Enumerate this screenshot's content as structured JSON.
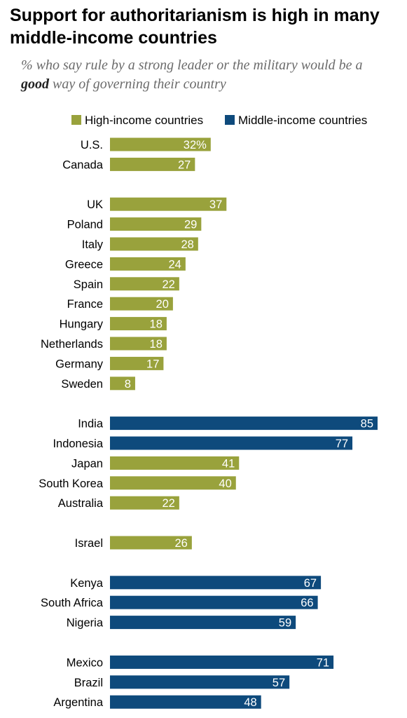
{
  "title": "Support for authoritarianism is high in many middle-income countries",
  "subtitle_prefix": "% who say rule by a strong leader or the military would be a ",
  "subtitle_emphasis": "good",
  "subtitle_suffix": " way of governing their country",
  "legend": [
    {
      "label": "High-income countries",
      "color": "#99a23c"
    },
    {
      "label": "Middle-income countries",
      "color": "#0e4a7c"
    }
  ],
  "chart_data": {
    "type": "bar",
    "orientation": "horizontal",
    "title": "Support for authoritarianism is high in many middle-income countries",
    "subtitle": "% who say rule by a strong leader or the military would be a good way of governing their country",
    "value_suffix_first": "%",
    "xlim": [
      0,
      85
    ],
    "groups": [
      {
        "rows": [
          {
            "country": "U.S.",
            "value": 32,
            "income": "High-income countries"
          },
          {
            "country": "Canada",
            "value": 27,
            "income": "High-income countries"
          }
        ]
      },
      {
        "rows": [
          {
            "country": "UK",
            "value": 37,
            "income": "High-income countries"
          },
          {
            "country": "Poland",
            "value": 29,
            "income": "High-income countries"
          },
          {
            "country": "Italy",
            "value": 28,
            "income": "High-income countries"
          },
          {
            "country": "Greece",
            "value": 24,
            "income": "High-income countries"
          },
          {
            "country": "Spain",
            "value": 22,
            "income": "High-income countries"
          },
          {
            "country": "France",
            "value": 20,
            "income": "High-income countries"
          },
          {
            "country": "Hungary",
            "value": 18,
            "income": "High-income countries"
          },
          {
            "country": "Netherlands",
            "value": 18,
            "income": "High-income countries"
          },
          {
            "country": "Germany",
            "value": 17,
            "income": "High-income countries"
          },
          {
            "country": "Sweden",
            "value": 8,
            "income": "High-income countries"
          }
        ]
      },
      {
        "rows": [
          {
            "country": "India",
            "value": 85,
            "income": "Middle-income countries"
          },
          {
            "country": "Indonesia",
            "value": 77,
            "income": "Middle-income countries"
          },
          {
            "country": "Japan",
            "value": 41,
            "income": "High-income countries"
          },
          {
            "country": "South Korea",
            "value": 40,
            "income": "High-income countries"
          },
          {
            "country": "Australia",
            "value": 22,
            "income": "High-income countries"
          }
        ]
      },
      {
        "rows": [
          {
            "country": "Israel",
            "value": 26,
            "income": "High-income countries"
          }
        ]
      },
      {
        "rows": [
          {
            "country": "Kenya",
            "value": 67,
            "income": "Middle-income countries"
          },
          {
            "country": "South Africa",
            "value": 66,
            "income": "Middle-income countries"
          },
          {
            "country": "Nigeria",
            "value": 59,
            "income": "Middle-income countries"
          }
        ]
      },
      {
        "rows": [
          {
            "country": "Mexico",
            "value": 71,
            "income": "Middle-income countries"
          },
          {
            "country": "Brazil",
            "value": 57,
            "income": "Middle-income countries"
          },
          {
            "country": "Argentina",
            "value": 48,
            "income": "Middle-income countries"
          }
        ]
      }
    ]
  }
}
